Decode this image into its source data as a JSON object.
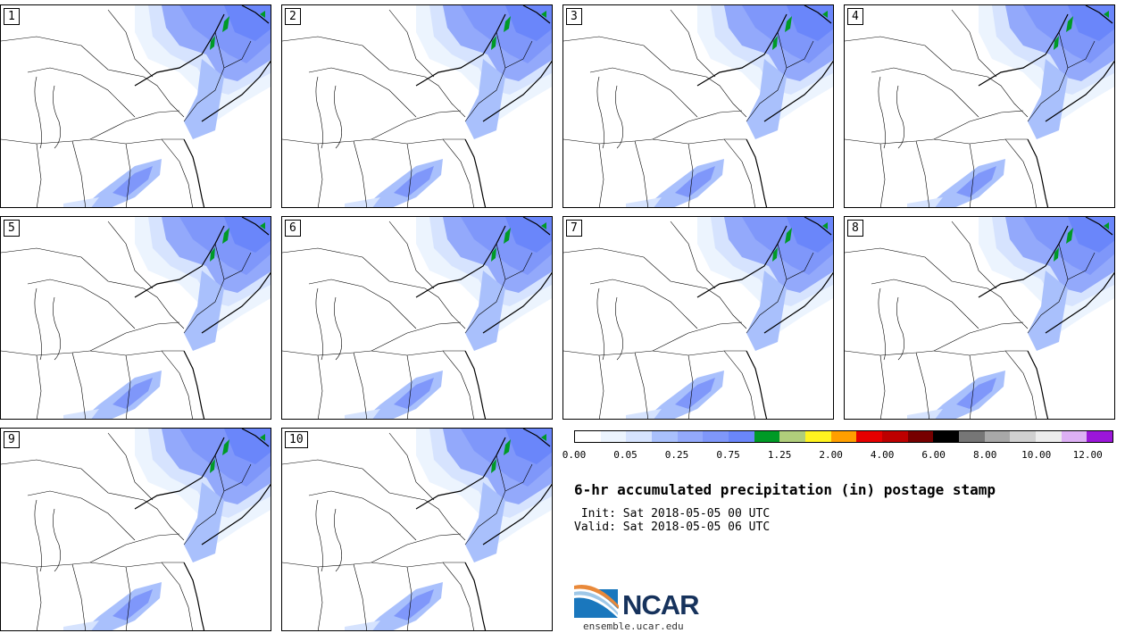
{
  "title": "6-hr accumulated precipitation (in) postage stamp",
  "init_text": " Init: Sat 2018-05-05 00 UTC",
  "valid_text": "Valid: Sat 2018-05-05 06 UTC",
  "website": "ensemble.ucar.edu",
  "logo_text": "NCAR",
  "members": [
    "1",
    "2",
    "3",
    "4",
    "5",
    "6",
    "7",
    "8",
    "9",
    "10"
  ],
  "colorbar": {
    "colors": [
      "#ffffff",
      "#ecf4fe",
      "#d6e3fe",
      "#a9c0fc",
      "#93a9fb",
      "#7f97fa",
      "#6a86fa",
      "#009a26",
      "#b0cd7b",
      "#fff31f",
      "#ff9f00",
      "#e60000",
      "#bd0000",
      "#760000",
      "#000000",
      "#767676",
      "#a8a8a8",
      "#d0d0d0",
      "#ececec",
      "#ddb0f4",
      "#9b16d9"
    ],
    "tick_labels": [
      "0.00",
      "0.05",
      "0.25",
      "0.75",
      "1.25",
      "2.00",
      "4.00",
      "6.00",
      "8.00",
      "10.00",
      "12.00"
    ]
  }
}
